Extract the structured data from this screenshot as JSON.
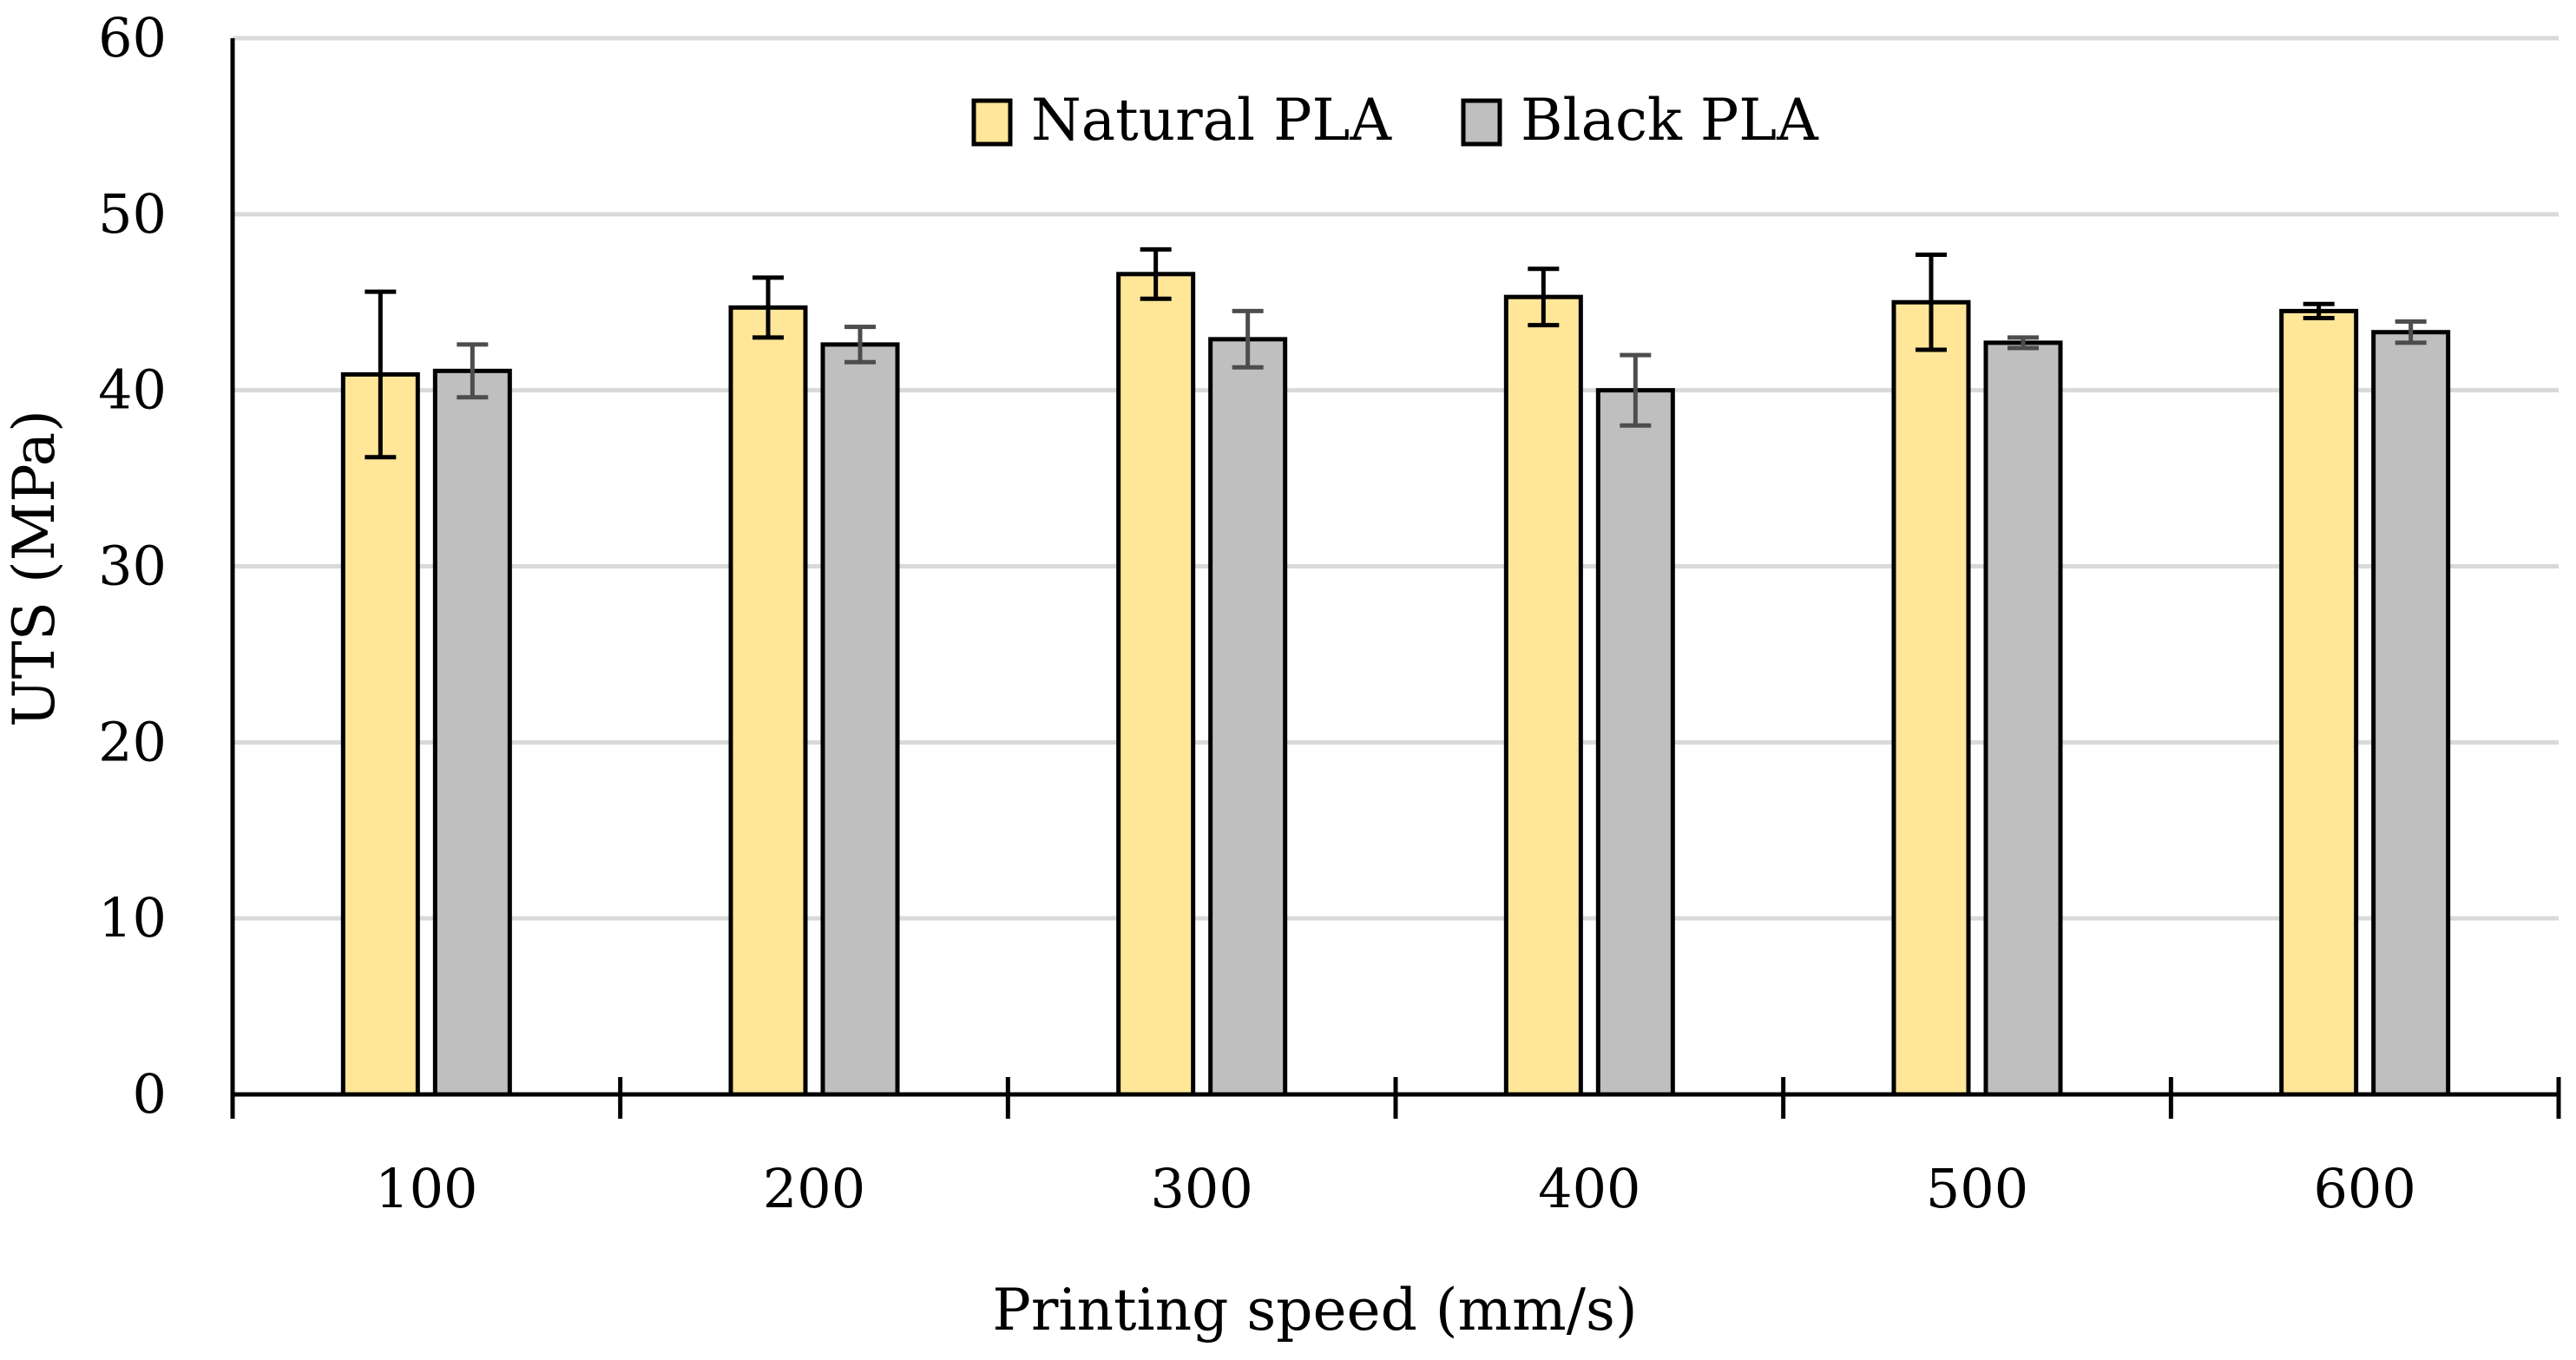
{
  "chart_data": {
    "type": "bar",
    "title": "",
    "xlabel": "Printing speed (mm/s)",
    "ylabel": "UTS (MPa)",
    "ylim": [
      0,
      60
    ],
    "yticks": [
      0,
      10,
      20,
      30,
      40,
      50,
      60
    ],
    "categories": [
      "100",
      "200",
      "300",
      "400",
      "500",
      "600"
    ],
    "grid": true,
    "legend_position": "top-center",
    "series": [
      {
        "name": "Natural PLA",
        "color": "#FFE699",
        "values": [
          40.9,
          44.7,
          46.6,
          45.3,
          45.0,
          44.5
        ],
        "errors": [
          4.7,
          1.7,
          1.4,
          1.6,
          2.7,
          0.4
        ]
      },
      {
        "name": "Black PLA",
        "color": "#BFBFBF",
        "values": [
          41.1,
          42.6,
          42.9,
          40.0,
          42.7,
          43.3
        ],
        "errors": [
          1.5,
          1.0,
          1.6,
          2.0,
          0.3,
          0.6
        ]
      }
    ]
  }
}
